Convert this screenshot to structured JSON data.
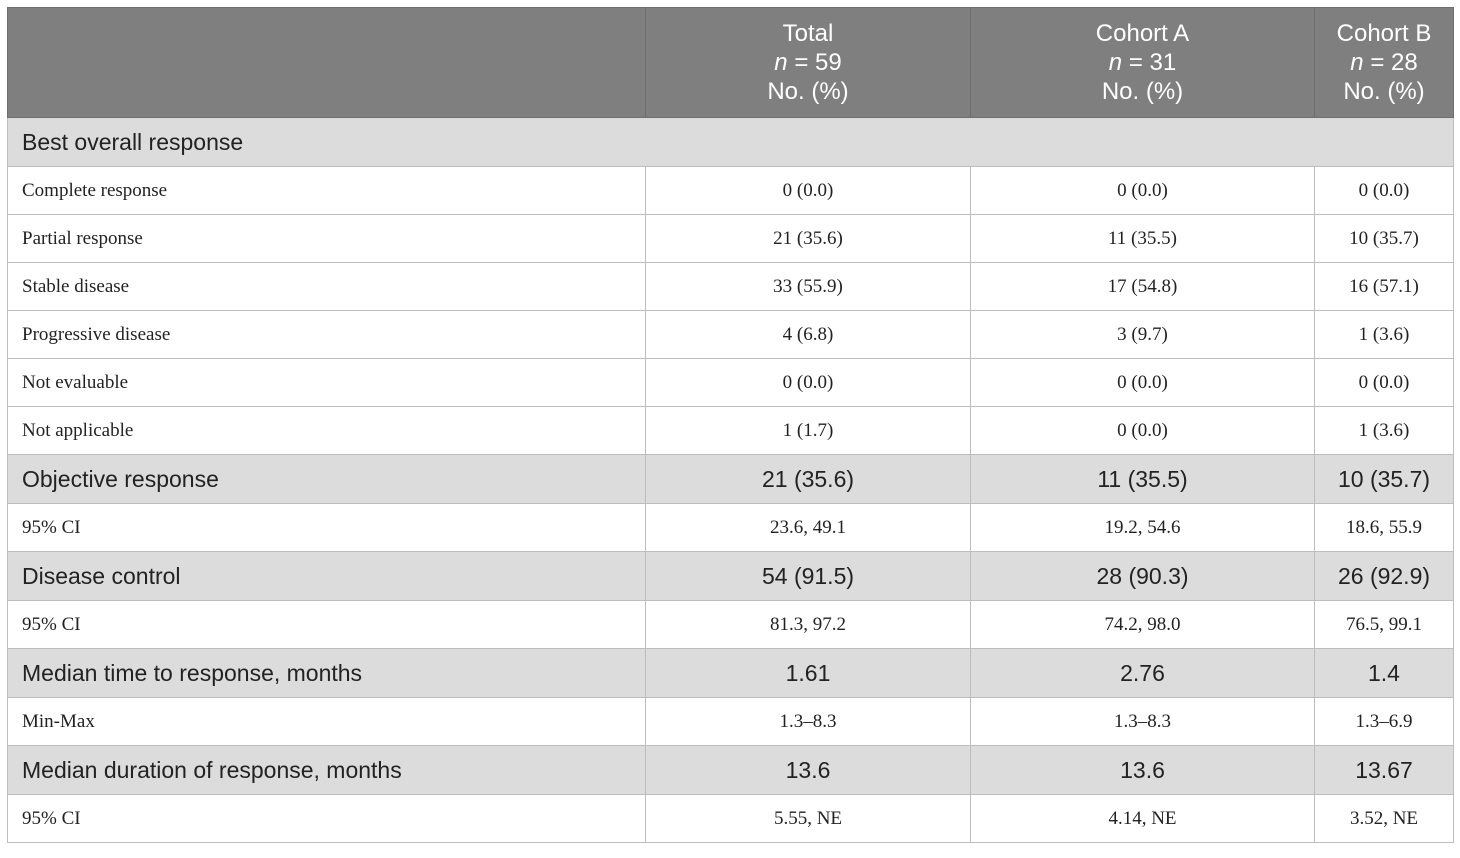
{
  "header": {
    "columns": [
      {
        "lines": [
          "",
          "",
          ""
        ]
      },
      {
        "title": "Total",
        "n_label": "n",
        "n_value": " = 59",
        "unit": "No. (%)"
      },
      {
        "title": "Cohort A",
        "n_label": "n",
        "n_value": " = 31",
        "unit": "No. (%)"
      },
      {
        "title": "Cohort B",
        "n_label": "n",
        "n_value": " = 28",
        "unit": "No. (%)"
      }
    ]
  },
  "sections": {
    "best_overall_response": "Best overall response"
  },
  "rows": [
    {
      "kind": "row",
      "label": "Complete response",
      "values": [
        "0 (0.0)",
        "0 (0.0)",
        "0 (0.0)"
      ]
    },
    {
      "kind": "row",
      "label": "Partial response",
      "values": [
        "21 (35.6)",
        "11 (35.5)",
        "10 (35.7)"
      ]
    },
    {
      "kind": "row",
      "label": "Stable disease",
      "values": [
        "33 (55.9)",
        "17 (54.8)",
        "16 (57.1)"
      ]
    },
    {
      "kind": "row",
      "label": "Progressive disease",
      "values": [
        "4 (6.8)",
        "3 (9.7)",
        "1 (3.6)"
      ]
    },
    {
      "kind": "row",
      "label": "Not evaluable",
      "values": [
        "0 (0.0)",
        "0 (0.0)",
        "0 (0.0)"
      ]
    },
    {
      "kind": "row",
      "label": "Not applicable",
      "values": [
        "1 (1.7)",
        "0 (0.0)",
        "1 (3.6)"
      ]
    },
    {
      "kind": "summary",
      "label": "Objective response",
      "values": [
        "21 (35.6)",
        "11 (35.5)",
        "10 (35.7)"
      ]
    },
    {
      "kind": "row",
      "label": "95% CI",
      "values": [
        "23.6, 49.1",
        "19.2, 54.6",
        "18.6, 55.9"
      ]
    },
    {
      "kind": "summary",
      "label": "Disease control",
      "values": [
        "54 (91.5)",
        "28 (90.3)",
        "26 (92.9)"
      ]
    },
    {
      "kind": "row",
      "label": "95% CI",
      "values": [
        "81.3, 97.2",
        "74.2, 98.0",
        "76.5, 99.1"
      ]
    },
    {
      "kind": "summary",
      "label": "Median time to response, months",
      "values": [
        "1.61",
        "2.76",
        "1.4"
      ]
    },
    {
      "kind": "row",
      "label": "Min-Max",
      "values": [
        "1.3–8.3",
        "1.3–8.3",
        "1.3–6.9"
      ]
    },
    {
      "kind": "summary",
      "label": "Median duration of response, months",
      "values": [
        "13.6",
        "13.6",
        "13.67"
      ]
    },
    {
      "kind": "row",
      "label": "95% CI",
      "values": [
        "5.55, NE",
        "4.14, NE",
        "3.52, NE"
      ]
    }
  ]
}
